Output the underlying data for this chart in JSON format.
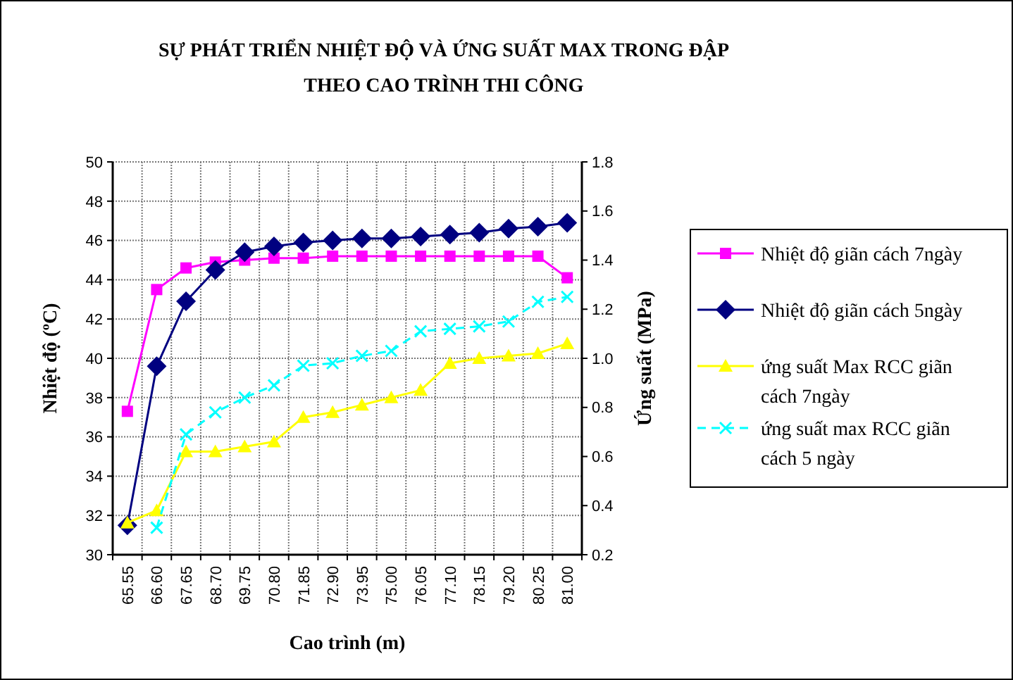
{
  "chart_data": {
    "type": "line",
    "title": "SỰ PHÁT TRIỂN NHIỆT ĐỘ VÀ ỨNG SUẤT MAX TRONG ĐẬP\nTHEO CAO TRÌNH THI CÔNG",
    "xlabel": "Cao trình (m)",
    "ylabel": "Nhiệt độ (ºC)",
    "y2label": "Ứng suất (MPa)",
    "categories": [
      "65.55",
      "66.60",
      "67.65",
      "68.70",
      "69.75",
      "70.80",
      "71.85",
      "72.90",
      "73.95",
      "75.00",
      "76.05",
      "77.10",
      "78.15",
      "79.20",
      "80.25",
      "81.00"
    ],
    "ylim": [
      30,
      50
    ],
    "yticks": [
      30,
      32,
      34,
      36,
      38,
      40,
      42,
      44,
      46,
      48,
      50
    ],
    "y2lim": [
      0.2,
      1.8
    ],
    "y2ticks": [
      {
        "value": 0.2,
        "label": "0.2"
      },
      {
        "value": 0.4,
        "label": "0.4"
      },
      {
        "value": 0.6,
        "label": "0.6"
      },
      {
        "value": 0.8,
        "label": "0.8"
      },
      {
        "value": 1.0,
        "label": "1.0"
      },
      {
        "value": 1.2,
        "label": "1.2"
      },
      {
        "value": 1.4,
        "label": "1.4"
      },
      {
        "value": 1.6,
        "label": "1.6"
      },
      {
        "value": 1.8,
        "label": "1.8"
      }
    ],
    "grid": true,
    "legend": "right",
    "series": [
      {
        "name": "Nhiệt độ giãn cách 7ngày",
        "color": "#ff00ff",
        "marker": "square",
        "line_style": "solid",
        "values": [
          37.3,
          43.5,
          44.6,
          44.9,
          45.0,
          45.1,
          45.1,
          45.2,
          45.2,
          45.2,
          45.2,
          45.2,
          45.2,
          45.2,
          45.2,
          44.1
        ]
      },
      {
        "name": "Nhiệt độ giãn cách 5ngày",
        "color": "#000080",
        "marker": "diamond",
        "line_style": "solid",
        "values": [
          31.5,
          39.6,
          42.9,
          44.5,
          45.4,
          45.7,
          45.9,
          46.0,
          46.1,
          46.1,
          46.2,
          46.3,
          46.4,
          46.6,
          46.7,
          46.9
        ]
      },
      {
        "name": "ứng suất Max RCC giãn cách 7ngày",
        "color": "#ffff00",
        "marker": "triangle",
        "line_style": "solid",
        "axis": "y2",
        "values": [
          0.33,
          0.38,
          0.62,
          0.62,
          0.64,
          0.66,
          0.76,
          0.78,
          0.81,
          0.84,
          0.87,
          0.98,
          1.0,
          1.01,
          1.02,
          1.06
        ]
      },
      {
        "name": "ứng suất max RCC giãn cách 5 ngày",
        "color": "#00ffff",
        "marker": "cross",
        "line_style": "dashed",
        "axis": "y2",
        "values": [
          null,
          0.31,
          0.69,
          0.78,
          0.84,
          0.89,
          0.97,
          0.98,
          1.01,
          1.03,
          1.11,
          1.12,
          1.13,
          1.15,
          1.23,
          1.25
        ]
      }
    ]
  }
}
